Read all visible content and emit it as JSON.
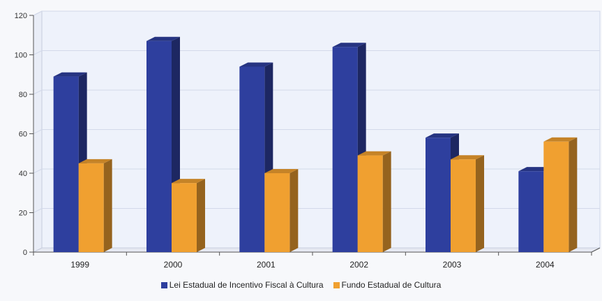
{
  "chart_data": {
    "type": "bar",
    "categories": [
      "1999",
      "2000",
      "2001",
      "2002",
      "2003",
      "2004"
    ],
    "series": [
      {
        "name": "Lei Estadual de Incentivo Fiscal à Cultura",
        "values": [
          89,
          107,
          94,
          104,
          58,
          41
        ],
        "color": "#2e3f9e"
      },
      {
        "name": "Fundo Estadual de Cultura",
        "values": [
          45,
          35,
          40,
          49,
          47,
          56
        ],
        "color": "#f0a030"
      }
    ],
    "ylim": [
      0,
      120
    ],
    "yticks": [
      "0",
      "20",
      "40",
      "60",
      "80",
      "100",
      "120"
    ],
    "grid": true,
    "legend_position": "bottom-center",
    "title": "",
    "xlabel": "",
    "ylabel": ""
  }
}
